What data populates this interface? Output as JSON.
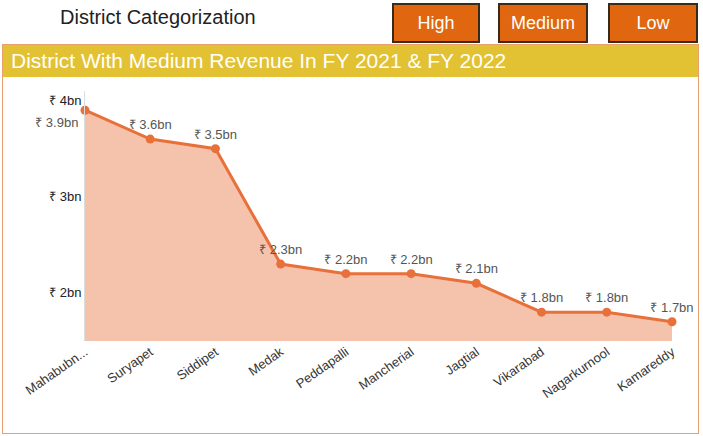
{
  "header": {
    "title": "District Categorization",
    "buttons": [
      "High",
      "Medium",
      "Low"
    ]
  },
  "chart_data": {
    "type": "line",
    "title": "District With Medium Revenue In FY 2021 & FY 2022",
    "categories": [
      "Mahabubn...",
      "Suryapet",
      "Siddipet",
      "Medak",
      "Peddapalli",
      "Mancherial",
      "Jagtial",
      "Vikarabad",
      "Nagarkurnool",
      "Kamareddy"
    ],
    "values": [
      3.9,
      3.6,
      3.5,
      2.3,
      2.2,
      2.2,
      2.1,
      1.8,
      1.8,
      1.7
    ],
    "value_labels": [
      "₹ 3.9bn",
      "₹ 3.6bn",
      "₹ 3.5bn",
      "₹ 2.3bn",
      "₹ 2.2bn",
      "₹ 2.2bn",
      "₹ 2.1bn",
      "₹ 1.8bn",
      "₹ 1.8bn",
      "₹ 1.7bn"
    ],
    "color": "#e8703a",
    "ylim": [
      1.5,
      4.1
    ],
    "yticks": [
      {
        "value": 2,
        "label": "₹ 2bn"
      },
      {
        "value": 3,
        "label": "₹ 3bn"
      },
      {
        "value": 4,
        "label": "₹ 4bn"
      }
    ],
    "grid": false,
    "data_labels": true,
    "marker": "circle"
  }
}
